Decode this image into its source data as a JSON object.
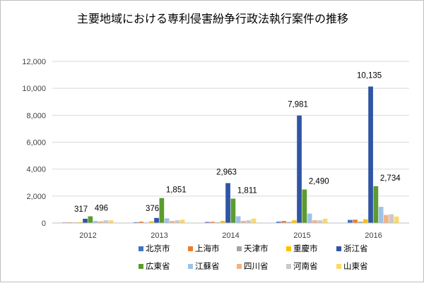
{
  "chart_data": {
    "type": "bar",
    "title": "主要地域における専利侵害紛争行政法執行案件の推移",
    "xlabel": "",
    "ylabel": "",
    "ylim": [
      0,
      12000
    ],
    "yticks": [
      "0",
      "2,000",
      "4,000",
      "6,000",
      "8,000",
      "10,000",
      "12,000"
    ],
    "ytick_values": [
      0,
      2000,
      4000,
      6000,
      8000,
      10000,
      12000
    ],
    "categories": [
      "2012",
      "2013",
      "2014",
      "2015",
      "2016"
    ],
    "grid": true,
    "legend_position": "bottom",
    "series": [
      {
        "name": "北京市",
        "color": "#4472C4",
        "values": [
          40,
          60,
          80,
          100,
          230
        ]
      },
      {
        "name": "上海市",
        "color": "#ED7D31",
        "values": [
          50,
          100,
          90,
          150,
          250
        ]
      },
      {
        "name": "天津市",
        "color": "#A5A5A5",
        "values": [
          30,
          40,
          50,
          80,
          100
        ]
      },
      {
        "name": "重慶市",
        "color": "#FFC000",
        "values": [
          60,
          130,
          160,
          200,
          280
        ]
      },
      {
        "name": "浙江省",
        "color": "#2F55A5",
        "values": [
          317,
          376,
          2963,
          7981,
          10135
        ]
      },
      {
        "name": "広東省",
        "color": "#5B9B2F",
        "values": [
          496,
          1851,
          1811,
          2490,
          2734
        ]
      },
      {
        "name": "江蘇省",
        "color": "#9DC3E6",
        "values": [
          150,
          350,
          500,
          700,
          1200
        ]
      },
      {
        "name": "四川省",
        "color": "#F4B183",
        "values": [
          120,
          150,
          160,
          200,
          600
        ]
      },
      {
        "name": "河南省",
        "color": "#C9C9C9",
        "values": [
          200,
          200,
          200,
          200,
          650
        ]
      },
      {
        "name": "山東省",
        "color": "#FFD966",
        "values": [
          200,
          250,
          330,
          320,
          480
        ]
      }
    ],
    "data_labels": [
      {
        "category": "2012",
        "series": "浙江省",
        "text": "317"
      },
      {
        "category": "2012",
        "series": "広東省",
        "text": "496"
      },
      {
        "category": "2013",
        "series": "浙江省",
        "text": "376"
      },
      {
        "category": "2013",
        "series": "広東省",
        "text": "1,851"
      },
      {
        "category": "2014",
        "series": "浙江省",
        "text": "2,963"
      },
      {
        "category": "2014",
        "series": "広東省",
        "text": "1,811"
      },
      {
        "category": "2015",
        "series": "浙江省",
        "text": "7,981"
      },
      {
        "category": "2015",
        "series": "広東省",
        "text": "2,490"
      },
      {
        "category": "2016",
        "series": "浙江省",
        "text": "10,135"
      },
      {
        "category": "2016",
        "series": "広東省",
        "text": "2,734"
      }
    ]
  }
}
